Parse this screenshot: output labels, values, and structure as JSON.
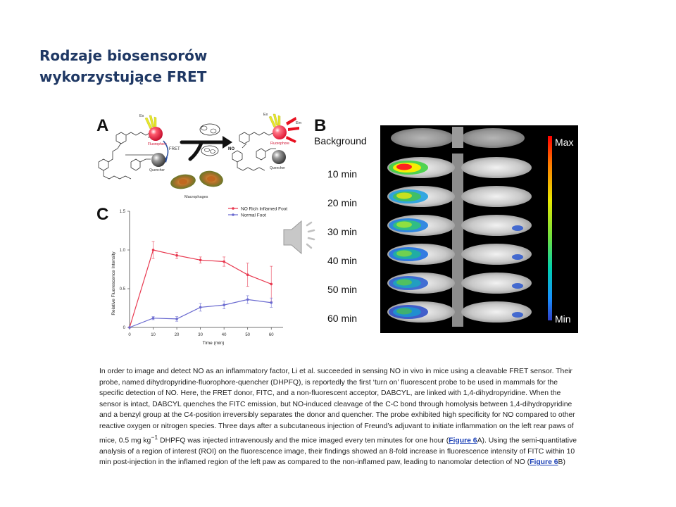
{
  "slide": {
    "title_line1": "Rodzaje biosensorów",
    "title_line2": "wykorzystujące FRET"
  },
  "figure": {
    "panel_a": {
      "letter": "A",
      "labels": {
        "ex": "Ex",
        "em": "Em",
        "fluorophore": "Fluorophore",
        "quencher": "Quencher",
        "fret": "FRET",
        "no": "NO",
        "macrophages": "Macrophages"
      }
    },
    "panel_b": {
      "letter": "B",
      "background_label": "Background",
      "time_labels": [
        "10 min",
        "20 min",
        "30 min",
        "40 min",
        "50 min",
        "60 min"
      ],
      "scale_max": "Max",
      "scale_min": "Min",
      "colormap": [
        "#ff0000",
        "#ff8000",
        "#ffff00",
        "#80ff40",
        "#00e0a0",
        "#00a0ff",
        "#3030c0"
      ]
    },
    "panel_c": {
      "letter": "C",
      "chart_data": {
        "type": "line",
        "xlabel": "Time (min)",
        "ylabel": "Relative Fluorescence Intensity",
        "x": [
          0,
          10,
          20,
          30,
          40,
          50,
          60
        ],
        "xlim": [
          0,
          65
        ],
        "ylim": [
          0,
          1.5
        ],
        "x_ticks": [
          0,
          10,
          20,
          30,
          40,
          50,
          60
        ],
        "y_ticks": [
          0,
          0.5,
          1.0,
          1.5
        ],
        "y_tick_labels": [
          "0",
          "0.5",
          "1.0",
          "1.5"
        ],
        "legend_position": "top-right",
        "series": [
          {
            "name": "NO Rich Inflamed Foot",
            "color": "#e8384f",
            "values": [
              0,
              1.0,
              0.93,
              0.87,
              0.85,
              0.68,
              0.56
            ],
            "errors": [
              0,
              0.11,
              0.04,
              0.04,
              0.06,
              0.15,
              0.23
            ]
          },
          {
            "name": "Normal Foot",
            "color": "#6a6ad0",
            "values": [
              0,
              0.12,
              0.11,
              0.26,
              0.29,
              0.36,
              0.32
            ],
            "errors": [
              0,
              0.02,
              0.03,
              0.05,
              0.05,
              0.05,
              0.06
            ]
          }
        ]
      }
    },
    "speaker_icon": "speaker-icon"
  },
  "caption": {
    "text_1": "In order to image and detect NO as an inflammatory factor, Li et al. succeeded in sensing NO in vivo in mice using a cleavable FRET sensor. Their probe, named dihydropyridine-fluorophore-quencher (DHPFQ), is reportedly the first ‘turn on’ fluorescent probe to be used in mammals for the specific detection of NO. Here, the FRET donor, FITC, and a non-fluorescent acceptor, DABCYL, are linked with 1,4-dihydropyridine. When the sensor is intact, DABCYL quenches the FITC emission, but NO-induced cleavage of the C-C bond through homolysis between 1,4-dihydropyridine and a benzyl group at the C4-position irreversibly separates the donor and quencher. The probe exhibited high specificity for NO compared to other reactive oxygen or nitrogen species. Three days after a subcutaneous injection of Freund’s adjuvant to initiate inflammation on the left rear paws of mice, 0.5 mg kg",
    "sup": "−1",
    "text_2": " DHPFQ was injected intravenously and the mice imaged every ten minutes for one hour (",
    "link_1": "Figure 6",
    "text_3": "A). Using the semi-quantitative analysis of a region of interest (ROI) on the fluorescence image, their findings showed an 8-fold increase in fluorescence intensity of FITC within 10 min post-injection in the inflamed region of the left paw as compared to the non-inflamed paw, leading to nanomolar detection of NO (",
    "link_2": "Figure 6",
    "text_4": "B)"
  }
}
